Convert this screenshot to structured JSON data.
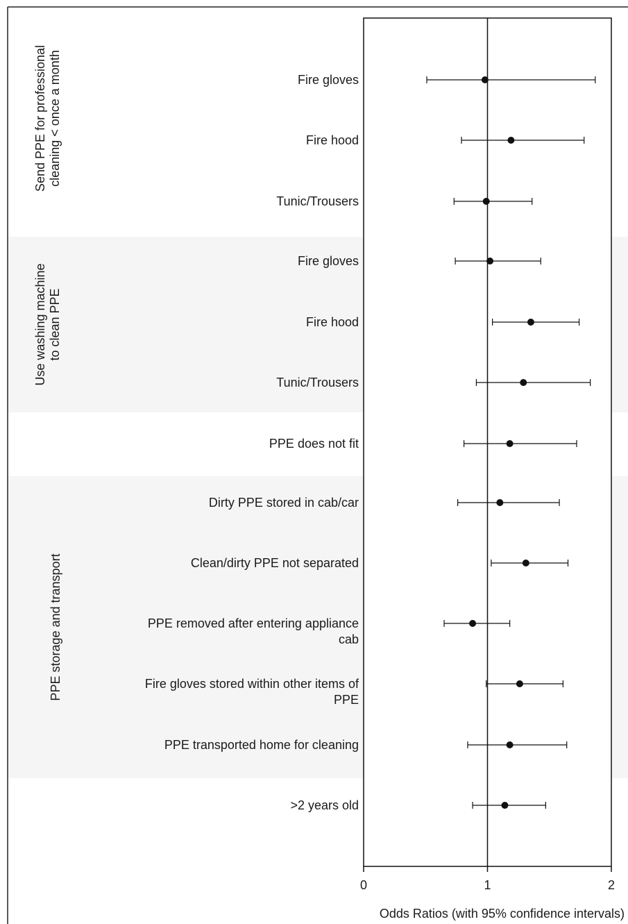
{
  "chart_data": {
    "type": "forest",
    "xlabel": "Odds Ratios (with 95% confidence intervals)",
    "xlim": [
      0,
      2
    ],
    "xticks": [
      0,
      1,
      2
    ],
    "reference_line": 1,
    "grid": false,
    "groups": [
      {
        "label": "Send PPE for professional\ncleaning < once a month",
        "shaded": false
      },
      {
        "label": "Use washing machine\nto clean PPE",
        "shaded": true
      },
      {
        "label": "",
        "shaded": false
      },
      {
        "label": "PPE storage and transport",
        "shaded": true
      },
      {
        "label": "",
        "shaded": false
      }
    ],
    "rows": [
      {
        "group": 0,
        "label": "Fire gloves",
        "or": 0.98,
        "lo": 0.51,
        "hi": 1.87
      },
      {
        "group": 0,
        "label": "Fire hood",
        "or": 1.19,
        "lo": 0.79,
        "hi": 1.78
      },
      {
        "group": 0,
        "label": "Tunic/Trousers",
        "or": 0.99,
        "lo": 0.73,
        "hi": 1.36
      },
      {
        "group": 1,
        "label": "Fire gloves",
        "or": 1.02,
        "lo": 0.74,
        "hi": 1.43
      },
      {
        "group": 1,
        "label": "Fire hood",
        "or": 1.35,
        "lo": 1.04,
        "hi": 1.74
      },
      {
        "group": 1,
        "label": "Tunic/Trousers",
        "or": 1.29,
        "lo": 0.91,
        "hi": 1.83
      },
      {
        "group": 2,
        "label": "PPE does not fit",
        "or": 1.18,
        "lo": 0.81,
        "hi": 1.72
      },
      {
        "group": 3,
        "label": "Dirty PPE stored in cab/car",
        "or": 1.1,
        "lo": 0.76,
        "hi": 1.58
      },
      {
        "group": 3,
        "label": "Clean/dirty PPE not separated",
        "or": 1.31,
        "lo": 1.03,
        "hi": 1.65
      },
      {
        "group": 3,
        "label": "PPE removed after entering appliance\ncab",
        "or": 0.88,
        "lo": 0.65,
        "hi": 1.18
      },
      {
        "group": 3,
        "label": "Fire gloves stored within other items of\nPPE",
        "or": 1.26,
        "lo": 0.99,
        "hi": 1.61
      },
      {
        "group": 3,
        "label": "PPE transported home for cleaning",
        "or": 1.18,
        "lo": 0.84,
        "hi": 1.64
      },
      {
        "group": 4,
        "label": ">2 years old",
        "or": 1.14,
        "lo": 0.88,
        "hi": 1.47
      }
    ],
    "colors": {
      "band": "#f4f5f4",
      "marker": "#111111",
      "line": "#111111"
    }
  }
}
